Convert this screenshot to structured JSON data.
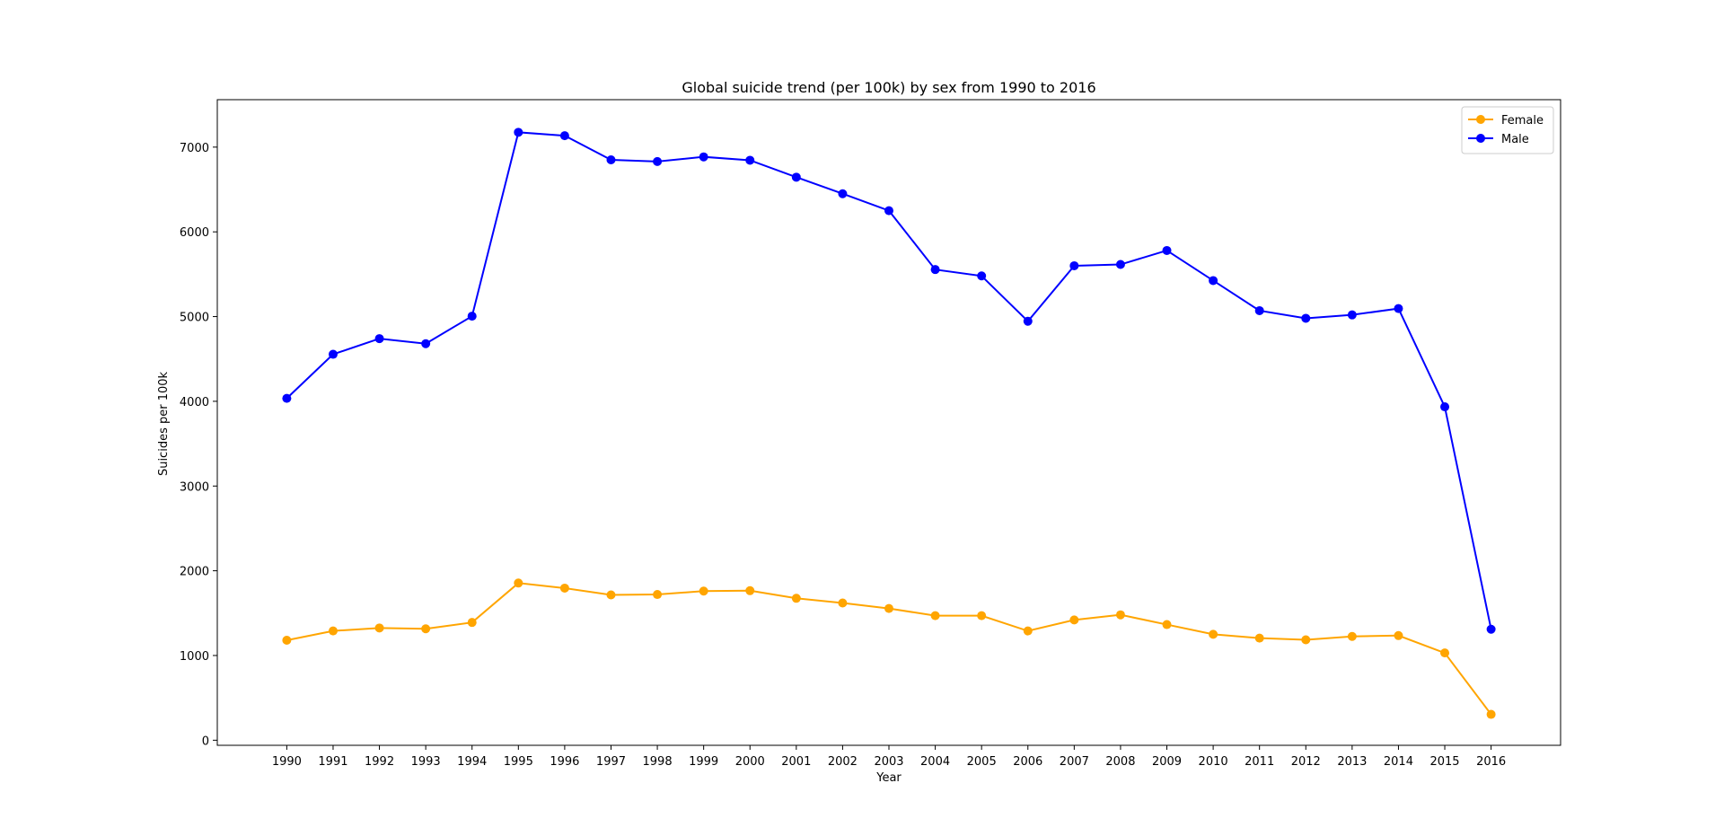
{
  "chart_data": {
    "type": "line",
    "title": "Global suicide trend (per 100k) by sex from 1990 to 2016",
    "xlabel": "Year",
    "ylabel": "Suicides per 100k",
    "x": [
      1990,
      1991,
      1992,
      1993,
      1994,
      1995,
      1996,
      1997,
      1998,
      1999,
      2000,
      2001,
      2002,
      2003,
      2004,
      2005,
      2006,
      2007,
      2008,
      2009,
      2010,
      2011,
      2012,
      2013,
      2014,
      2015,
      2016
    ],
    "xlim": [
      1988.5,
      2017.5
    ],
    "ylim": [
      -60,
      7560
    ],
    "yticks": [
      0,
      1000,
      2000,
      3000,
      4000,
      5000,
      6000,
      7000
    ],
    "grid": false,
    "legend_position": "top-right",
    "series": [
      {
        "name": "Female",
        "color": "#ffa500",
        "marker": "circle",
        "values": [
          1180,
          1290,
          1325,
          1315,
          1390,
          1855,
          1795,
          1715,
          1720,
          1760,
          1765,
          1675,
          1620,
          1555,
          1470,
          1470,
          1290,
          1420,
          1480,
          1365,
          1250,
          1205,
          1185,
          1225,
          1235,
          1030,
          305
        ]
      },
      {
        "name": "Male",
        "color": "#0000ff",
        "marker": "circle",
        "values": [
          4035,
          4555,
          4740,
          4680,
          5005,
          7175,
          7135,
          6850,
          6830,
          6885,
          6845,
          6645,
          6450,
          6250,
          5555,
          5480,
          4945,
          5600,
          5615,
          5780,
          5425,
          5070,
          4980,
          5020,
          5095,
          3935,
          1310
        ]
      }
    ]
  }
}
